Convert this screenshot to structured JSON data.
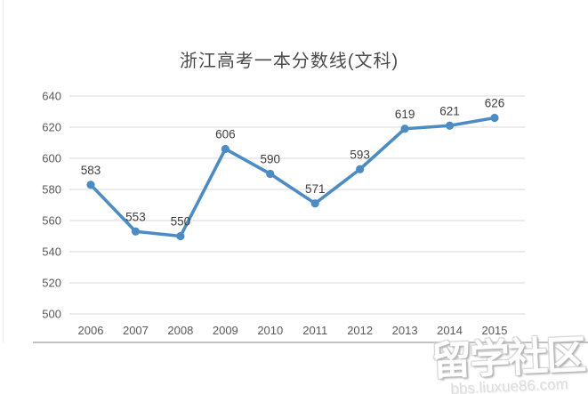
{
  "title": "浙江高考一本分数线(文科)",
  "chart_data": {
    "type": "line",
    "title": "浙江高考一本分数线(文科)",
    "categories": [
      "2006",
      "2007",
      "2008",
      "2009",
      "2010",
      "2011",
      "2012",
      "2013",
      "2014",
      "2015"
    ],
    "series": [
      {
        "name": "一本分数线(文科)",
        "values": [
          583,
          553,
          550,
          606,
          590,
          571,
          593,
          619,
          621,
          626
        ]
      }
    ],
    "data_labels": [
      583,
      553,
      550,
      606,
      590,
      571,
      593,
      619,
      621,
      626
    ],
    "xlabel": "",
    "ylabel": "",
    "ylim": [
      500,
      640
    ],
    "yticks": [
      500,
      520,
      540,
      560,
      580,
      600,
      620,
      640
    ],
    "grid": "horizontal",
    "legend_position": "none"
  },
  "colors": {
    "line": "#4d8cc3",
    "marker": "#4d8cc3",
    "gridline": "#d9d9d9",
    "axis_text": "#595959",
    "data_label_text": "#3d3d3d",
    "title_text": "#4a4a4a",
    "divider": "#c2c2c2"
  },
  "watermark": {
    "brand": "留学社区",
    "url": "bbs.liuxue86.com"
  }
}
